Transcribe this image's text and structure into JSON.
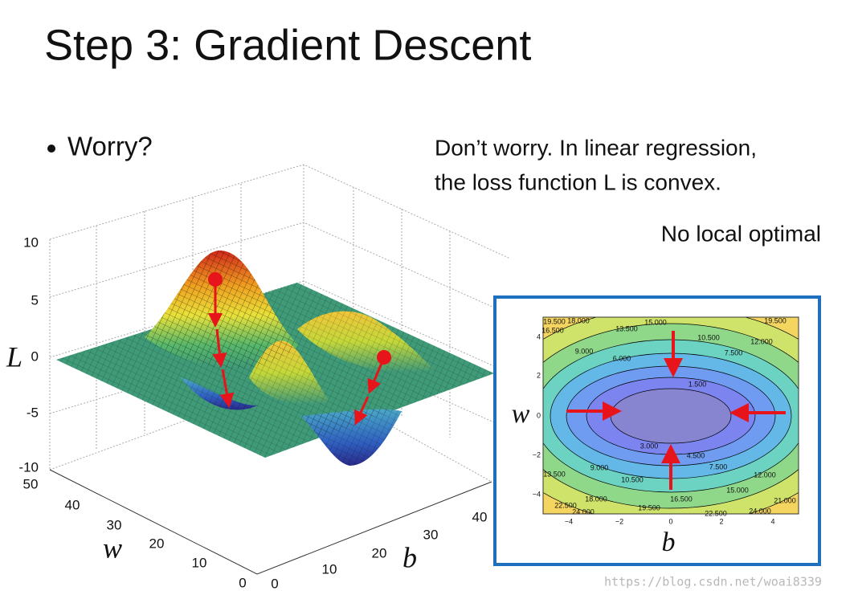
{
  "title": "Step 3: Gradient Descent",
  "bullet": "Worry?",
  "note": {
    "lines": [
      "Don’t worry. In linear regression,",
      "the loss function L is convex."
    ]
  },
  "remark": "No local optimal",
  "surface_plot": {
    "z_label": "L",
    "w_label": "w",
    "b_label": "b",
    "z_ticks": [
      "10",
      "5",
      "0",
      "-5",
      "-10"
    ],
    "w_ticks": [
      "50",
      "40",
      "30",
      "20",
      "10",
      "0"
    ],
    "b_ticks": [
      "0",
      "10",
      "20",
      "30",
      "40"
    ]
  },
  "contour_plot": {
    "w_label": "w",
    "b_label": "b",
    "b_ticks": [
      "−4",
      "−2",
      "0",
      "2",
      "4"
    ],
    "w_ticks": [
      "4",
      "2",
      "0",
      "−2",
      "−4"
    ],
    "contour_labels": [
      "19.500",
      "18.000",
      "16.500",
      "15.000",
      "13.500",
      "10.500",
      "12.000",
      "19.500",
      "9.000",
      "7.500",
      "6.000",
      "1.500",
      "3.000",
      "4.500",
      "7.500",
      "9.000",
      "10.500",
      "13.500",
      "12.000",
      "15.000",
      "16.500",
      "18.000",
      "19.500",
      "21.000",
      "22.500",
      "24.000",
      "22.500",
      "24.000"
    ]
  },
  "watermark": "https://blog.csdn.net/woai8339"
}
